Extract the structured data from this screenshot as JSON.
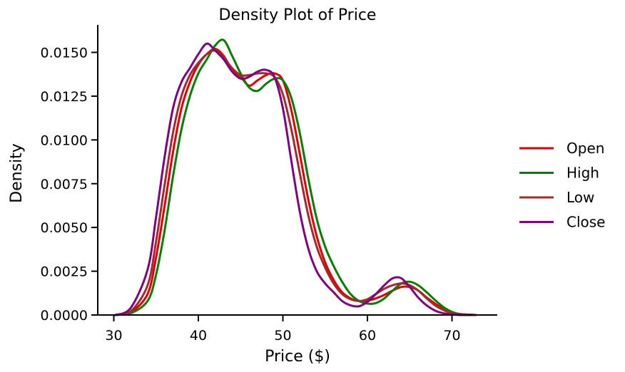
{
  "chart_data": {
    "type": "line",
    "title": "Density Plot of Price",
    "xlabel": "Price ($)",
    "ylabel": "Density",
    "xlim": [
      28,
      75
    ],
    "ylim": [
      0,
      0.0165
    ],
    "xticks": [
      30,
      40,
      50,
      60,
      70
    ],
    "xtick_labels": [
      "30",
      "40",
      "50",
      "60",
      "70"
    ],
    "yticks": [
      0,
      0.0025,
      0.005,
      0.0075,
      0.01,
      0.0125,
      0.015
    ],
    "ytick_labels": [
      "0.0000",
      "0.0025",
      "0.0050",
      "0.0075",
      "0.0100",
      "0.0125",
      "0.0150"
    ],
    "grid": false,
    "legend_position": "right",
    "series": [
      {
        "name": "Open",
        "color": "#e00000",
        "x": [
          30.2,
          32,
          34,
          35,
          36,
          37,
          38,
          39,
          40,
          41,
          42,
          43,
          44,
          45,
          46,
          47,
          48,
          49,
          50,
          51,
          52,
          53,
          54,
          55,
          56,
          57,
          58,
          59,
          60,
          61,
          62,
          63,
          64,
          65,
          66,
          67,
          68,
          69,
          70,
          71,
          72.8
        ],
        "y": [
          0.0,
          0.00015,
          0.0012,
          0.0033,
          0.0062,
          0.0093,
          0.0118,
          0.0133,
          0.0143,
          0.0149,
          0.0152,
          0.0148,
          0.014,
          0.0136,
          0.0131,
          0.0134,
          0.0137,
          0.0138,
          0.0134,
          0.0117,
          0.0092,
          0.0066,
          0.0045,
          0.003,
          0.002,
          0.0013,
          0.00095,
          0.0008,
          0.00082,
          0.00095,
          0.00115,
          0.0014,
          0.0016,
          0.0016,
          0.0014,
          0.001,
          0.00065,
          0.00035,
          0.00015,
          5e-05,
          0.0
        ]
      },
      {
        "name": "High",
        "color": "#008000",
        "x": [
          30.2,
          32,
          34,
          35,
          36,
          37,
          38,
          39,
          40,
          41,
          42,
          43,
          44,
          45,
          46,
          47,
          48,
          49,
          50,
          51,
          52,
          53,
          54,
          55,
          56,
          57,
          58,
          59,
          60,
          61,
          62,
          63,
          64,
          65,
          66,
          67,
          68,
          69,
          70,
          71,
          72.8
        ],
        "y": [
          0.0,
          0.0001,
          0.0008,
          0.0023,
          0.0048,
          0.0079,
          0.0106,
          0.0125,
          0.0138,
          0.0146,
          0.0154,
          0.0157,
          0.0148,
          0.0138,
          0.013,
          0.0128,
          0.0132,
          0.0135,
          0.0134,
          0.0124,
          0.0104,
          0.0078,
          0.0055,
          0.0039,
          0.0028,
          0.0019,
          0.0012,
          0.0008,
          0.00065,
          0.00068,
          0.00095,
          0.0014,
          0.0018,
          0.0019,
          0.0017,
          0.0013,
          0.00085,
          0.00045,
          0.00018,
          5e-05,
          0.0
        ]
      },
      {
        "name": "Low",
        "color": "#a52a2a",
        "x": [
          30.2,
          32,
          34,
          35,
          36,
          37,
          38,
          39,
          40,
          41,
          42,
          43,
          44,
          45,
          46,
          47,
          48,
          49,
          50,
          51,
          52,
          53,
          54,
          55,
          56,
          57,
          58,
          59,
          60,
          61,
          62,
          63,
          64,
          65,
          66,
          67,
          68,
          69,
          70,
          71,
          72.8
        ],
        "y": [
          0.0,
          0.0002,
          0.0017,
          0.0042,
          0.0074,
          0.0104,
          0.0125,
          0.0137,
          0.0144,
          0.0149,
          0.0151,
          0.0147,
          0.0141,
          0.0137,
          0.0137,
          0.0138,
          0.0138,
          0.0136,
          0.0126,
          0.0106,
          0.0081,
          0.0057,
          0.0039,
          0.0027,
          0.0018,
          0.0012,
          0.0009,
          0.0008,
          0.0009,
          0.0012,
          0.0015,
          0.0017,
          0.0018,
          0.0017,
          0.0014,
          0.00095,
          0.00055,
          0.00028,
          0.0001,
          3e-05,
          0.0
        ]
      },
      {
        "name": "Close",
        "color": "#800080",
        "x": [
          30.2,
          32,
          34,
          35,
          36,
          37,
          38,
          39,
          40,
          41,
          42,
          43,
          44,
          45,
          46,
          47,
          48,
          49,
          50,
          51,
          52,
          53,
          54,
          55,
          56,
          57,
          58,
          59,
          60,
          61,
          62,
          63,
          64,
          65,
          66,
          67,
          68,
          69,
          70,
          71,
          72.8
        ],
        "y": [
          0.0,
          0.0004,
          0.0026,
          0.0056,
          0.009,
          0.0118,
          0.0133,
          0.0141,
          0.0149,
          0.0155,
          0.0151,
          0.0146,
          0.0139,
          0.0135,
          0.0136,
          0.0139,
          0.014,
          0.0136,
          0.0118,
          0.0088,
          0.0059,
          0.0038,
          0.0025,
          0.0018,
          0.0013,
          0.0008,
          0.00055,
          0.0005,
          0.00075,
          0.0012,
          0.0017,
          0.0021,
          0.0021,
          0.0016,
          0.001,
          0.00055,
          0.00025,
          0.0001,
          3e-05,
          0.0,
          0.0
        ]
      }
    ]
  }
}
